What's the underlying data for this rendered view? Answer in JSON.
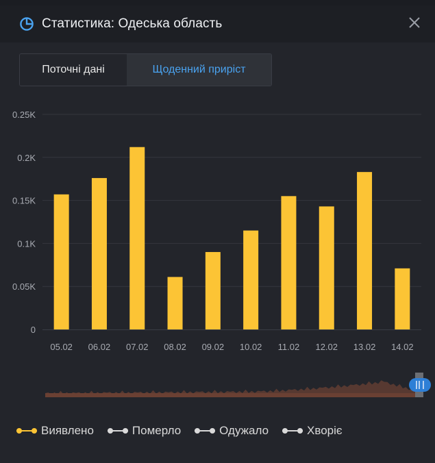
{
  "header": {
    "title": "Статистика: Одеська область",
    "icon": "pie-clock-icon",
    "close_icon": "close-icon"
  },
  "tabs": [
    {
      "label": "Поточні дані",
      "active": false
    },
    {
      "label": "Щоденний приріст",
      "active": true
    }
  ],
  "colors": {
    "accent": "#4aa3f0",
    "bar": "#fcc435",
    "grid": "#34373e",
    "axis_text": "#a9acb3",
    "overview": "#5b3a31"
  },
  "chart_data": {
    "type": "bar",
    "categories": [
      "05.02",
      "06.02",
      "07.02",
      "08.02",
      "09.02",
      "10.02",
      "11.02",
      "12.02",
      "13.02",
      "14.02"
    ],
    "series": [
      {
        "name": "Виявлено",
        "values": [
          157,
          176,
          212,
          61,
          90,
          115,
          155,
          143,
          183,
          71
        ]
      }
    ],
    "yticks": [
      "0",
      "0.05K",
      "0.1K",
      "0.15K",
      "0.2K",
      "0.25K"
    ],
    "ylim": [
      0,
      250
    ],
    "grid": true,
    "legend_position": "bottom"
  },
  "legend": [
    {
      "label": "Виявлено",
      "color": "#fcc435",
      "active": true
    },
    {
      "label": "Померло",
      "color": "#d9d9d9",
      "active": false
    },
    {
      "label": "Одужало",
      "color": "#d9d9d9",
      "active": false
    },
    {
      "label": "Хворіє",
      "color": "#d9d9d9",
      "active": false
    }
  ]
}
